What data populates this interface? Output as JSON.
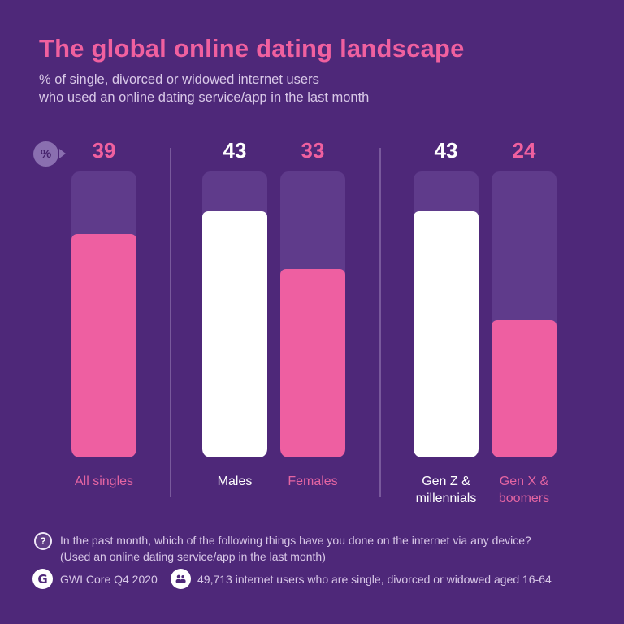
{
  "title": "The global online dating landscape",
  "subtitle": "% of single, divorced or widowed internet users\nwho used an online dating service/app in the last month",
  "axis_badge": {
    "unit": "%"
  },
  "chart_data": {
    "type": "bar",
    "title": "The global online dating landscape",
    "ylabel": "% of single, divorced or widowed internet users who used an online dating service/app in the last month",
    "xlabel": "",
    "ylim": [
      0,
      50
    ],
    "grid": false,
    "legend": "none",
    "categories": [
      "All singles",
      "Males",
      "Females",
      "Gen Z & millennials",
      "Gen X & boomers"
    ],
    "values": [
      39,
      43,
      33,
      43,
      24
    ],
    "groups": [
      [
        "All singles"
      ],
      [
        "Males",
        "Females"
      ],
      [
        "Gen Z & millennials",
        "Gen X & boomers"
      ]
    ],
    "bars": [
      {
        "label": "All singles",
        "value": 39,
        "fill_color": "#EE5FA1",
        "value_color": "#F0609F",
        "label_color": "#E465A2"
      },
      {
        "label": "Males",
        "value": 43,
        "fill_color": "#FFFFFF",
        "value_color": "#FFFFFF",
        "label_color": "#FFFFFF"
      },
      {
        "label": "Females",
        "value": 33,
        "fill_color": "#EE5FA1",
        "value_color": "#F0609F",
        "label_color": "#E465A2"
      },
      {
        "label": "Gen Z &\nmillennials",
        "value": 43,
        "fill_color": "#FFFFFF",
        "value_color": "#FFFFFF",
        "label_color": "#FFFFFF"
      },
      {
        "label": "Gen X &\nboomers",
        "value": 24,
        "fill_color": "#EE5FA1",
        "value_color": "#F0609F",
        "label_color": "#E465A2"
      }
    ]
  },
  "footer": {
    "question": "In the past month, which of the following things have you done on the internet via any device?\n(Used an online dating service/app in the last month)",
    "question_mark": "?",
    "source_label": "GWI Core Q4 2020",
    "sample_label": "49,713 internet users who are single, divorced or widowed aged 16-64",
    "gwi_logo_letter": "G"
  },
  "colors": {
    "background": "#4E2879",
    "bar_track": "#5F3B8B",
    "pink": "#EE5FA1",
    "white": "#FFFFFF",
    "title_pink": "#F0609F",
    "lavender_text": "#D9C9E8"
  }
}
